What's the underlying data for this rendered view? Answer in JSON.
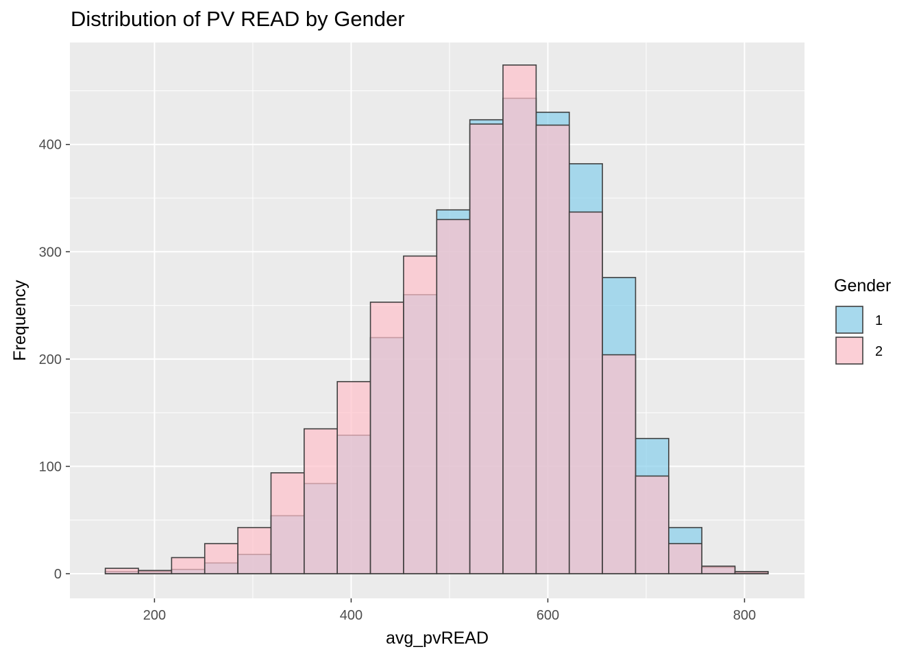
{
  "chart_data": {
    "type": "bar",
    "title": "Distribution of PV READ by Gender",
    "xlabel": "avg_pvREAD",
    "ylabel": "Frequency",
    "xlim": [
      114,
      861
    ],
    "ylim": [
      -23,
      495
    ],
    "x_ticks": [
      200,
      400,
      600,
      800
    ],
    "y_ticks": [
      0,
      100,
      200,
      300,
      400
    ],
    "x_minor_ticks": [
      300,
      500,
      700
    ],
    "y_minor_ticks": [
      50,
      150,
      250,
      350,
      450
    ],
    "grid": true,
    "legend_position": "right",
    "legend_title": "Gender",
    "bin_width": 33.7,
    "bins_start": [
      150,
      183.7,
      217.4,
      251.1,
      284.8,
      318.5,
      352.2,
      385.9,
      419.6,
      453.3,
      487,
      520.7,
      554.4,
      588.1,
      621.8,
      655.5,
      689.2,
      722.9,
      756.6,
      790.3
    ],
    "series": [
      {
        "name": "1",
        "color": "#87CEEB",
        "values": [
          2,
          2,
          4,
          10,
          18,
          54,
          84,
          129,
          220,
          260,
          339,
          423,
          443,
          430,
          382,
          276,
          126,
          43,
          6,
          1
        ]
      },
      {
        "name": "2",
        "color": "#FFC0CB",
        "values": [
          5,
          3,
          15,
          28,
          43,
          94,
          135,
          179,
          253,
          296,
          330,
          419,
          474,
          418,
          337,
          204,
          91,
          28,
          7,
          2
        ]
      }
    ]
  }
}
